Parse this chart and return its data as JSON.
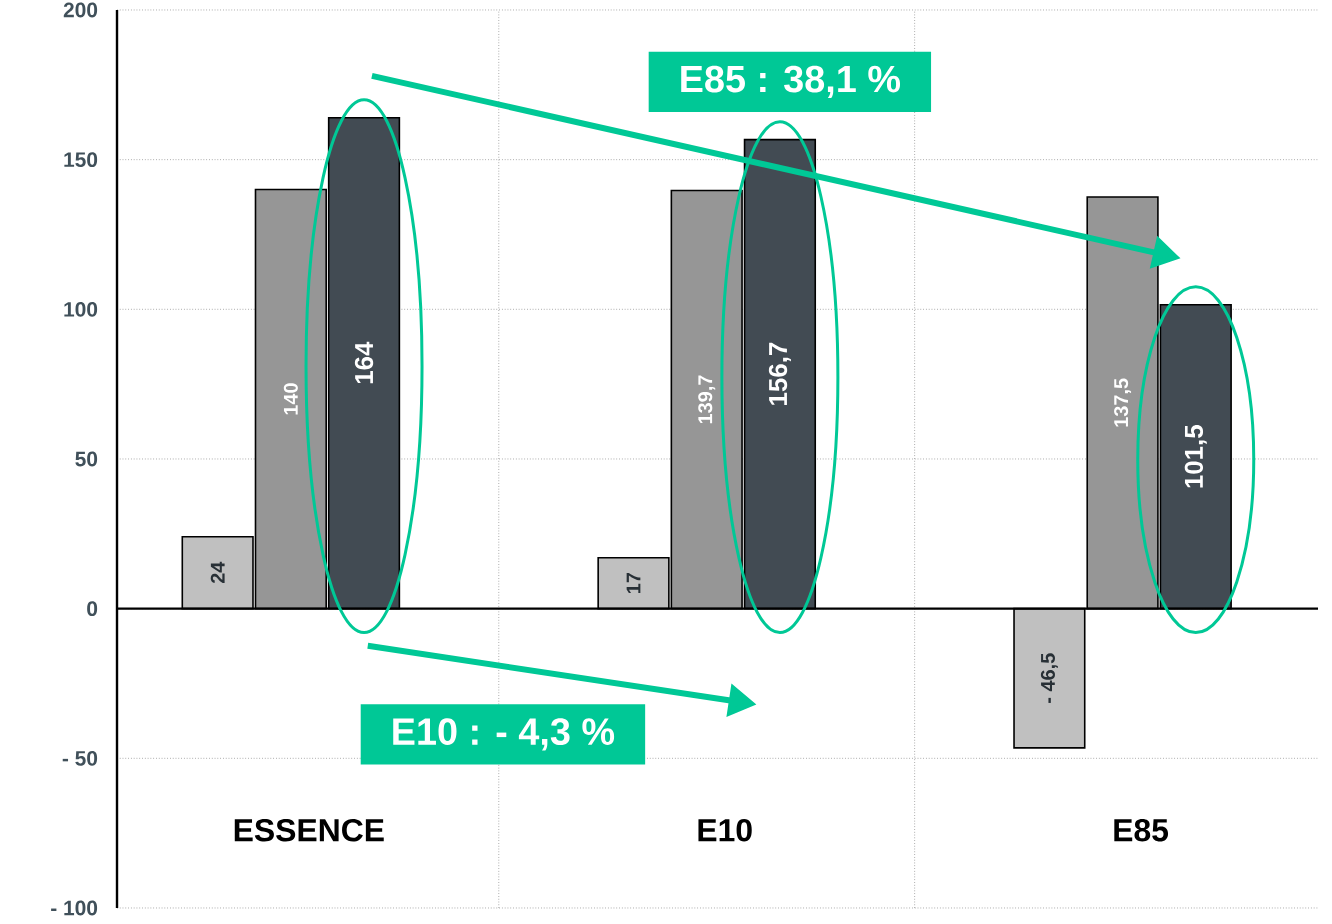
{
  "chart_data": {
    "type": "bar",
    "categories": [
      "ESSENCE",
      "E10",
      "E85"
    ],
    "series": [
      {
        "color": "#c0c0c0",
        "values": [
          24,
          17,
          -46.5
        ],
        "value_labels": [
          "24",
          "17",
          "- 46,5"
        ]
      },
      {
        "color": "#969696",
        "values": [
          140,
          139.7,
          137.5
        ],
        "value_labels": [
          "140",
          "139,7",
          "137,5"
        ]
      },
      {
        "color": "#424b53",
        "values": [
          164,
          156.7,
          101.5
        ],
        "value_labels": [
          "164",
          "156,7",
          "101,5"
        ]
      }
    ],
    "ylim": [
      -100,
      200
    ],
    "yticks": [
      200,
      150,
      100,
      50,
      0,
      {
        "value": -50,
        "label": "- 50"
      },
      {
        "value": -100,
        "label": "- 100"
      }
    ],
    "grid": true,
    "annotations": [
      "E85 : 38,1 %",
      "E10 : - 4,3 %"
    ]
  }
}
